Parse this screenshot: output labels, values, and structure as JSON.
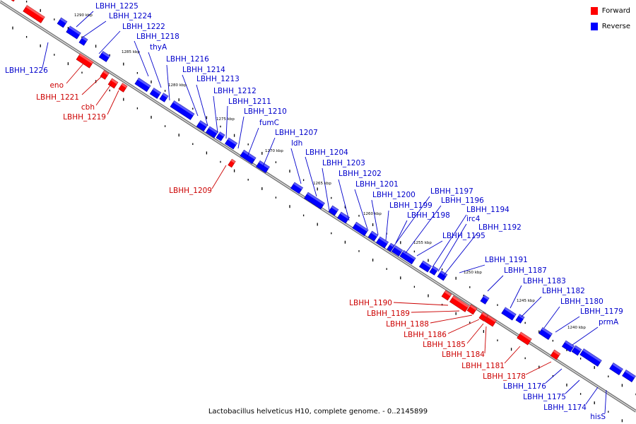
{
  "legend": {
    "forward_label": "Forward",
    "reverse_label": "Reverse",
    "forward_color": "#ff0000",
    "reverse_color": "#0000ff"
  },
  "caption": "Lactobacillus helveticus H10, complete genome. - 0..2145899",
  "scale_labels": [
    "1290 kbp",
    "1285 kbp",
    "1280 kbp",
    "1275 kbp",
    "1270 kbp",
    "1265 kbp",
    "1260 kbp",
    "1255 kbp",
    "1250 kbp",
    "1245 kbp",
    "1240 kbp"
  ],
  "reverse_genes": [
    "LBHH_1225",
    "LBHH_1224",
    "LBHH_1222",
    "LBHH_1218",
    "thyA",
    "LBHH_1216",
    "LBHH_1214",
    "LBHH_1213",
    "LBHH_1212",
    "LBHH_1211",
    "LBHH_1210",
    "fumC",
    "LBHH_1207",
    "ldh",
    "LBHH_1204",
    "LBHH_1203",
    "LBHH_1202",
    "LBHH_1201",
    "LBHH_1200",
    "LBHH_1199",
    "LBHH_1198",
    "LBHH_1197",
    "LBHH_1196",
    "LBHH_1194",
    "irc4",
    "LBHH_1192",
    "LBHH_1195",
    "LBHH_1191",
    "LBHH_1187",
    "LBHH_1183",
    "LBHH_1182",
    "LBHH_1180",
    "LBHH_1179",
    "prmA",
    "LBHH_1226",
    "LBHH_1176",
    "LBHH_1175",
    "LBHH_1174",
    "hisS"
  ],
  "forward_genes": [
    "eno",
    "LBHH_1221",
    "cbh",
    "LBHH_1219",
    "LBHH_1209",
    "LBHH_1190",
    "LBHH_1189",
    "LBHH_1188",
    "LBHH_1186",
    "LBHH_1185",
    "LBHH_1184",
    "LBHH_1181",
    "LBHH_1178"
  ]
}
